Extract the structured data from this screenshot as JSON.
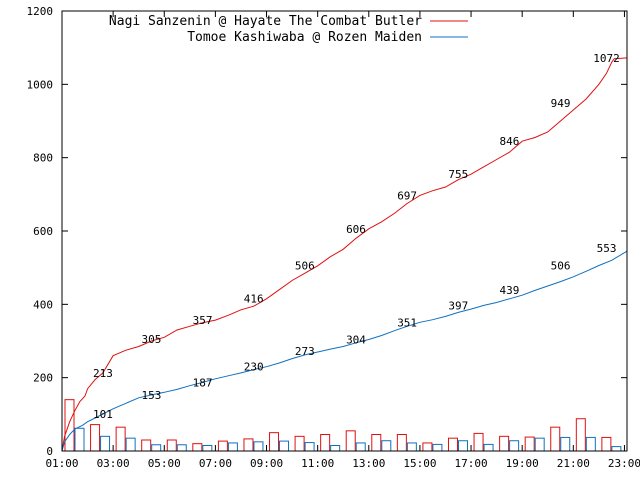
{
  "chart_data": {
    "type": "line",
    "xlabel": "",
    "ylabel": "",
    "xlim": [
      1,
      23.1
    ],
    "ylim": [
      0,
      1200
    ],
    "x_ticks": [
      {
        "x": 1,
        "label": "01:00"
      },
      {
        "x": 3,
        "label": "03:00"
      },
      {
        "x": 5,
        "label": "05:00"
      },
      {
        "x": 7,
        "label": "07:00"
      },
      {
        "x": 9,
        "label": "09:00"
      },
      {
        "x": 11,
        "label": "11:00"
      },
      {
        "x": 13,
        "label": "13:00"
      },
      {
        "x": 15,
        "label": "15:00"
      },
      {
        "x": 17,
        "label": "17:00"
      },
      {
        "x": 19,
        "label": "19:00"
      },
      {
        "x": 21,
        "label": "21:00"
      },
      {
        "x": 23,
        "label": "23:00"
      }
    ],
    "y_ticks": [
      0,
      200,
      400,
      600,
      800,
      1000,
      1200
    ],
    "grid": false,
    "legend_position": "top-left",
    "series": [
      {
        "name": "Nagi Sanzenin @ Hayate The Combat Butler",
        "color": "#e01010",
        "x": [
          1,
          1.1,
          1.3,
          1.5,
          1.7,
          1.9,
          2.0,
          2.3,
          2.6,
          3.0,
          3.5,
          4.0,
          4.5,
          5.0,
          5.5,
          6.0,
          6.5,
          7.0,
          7.5,
          8.0,
          8.5,
          9.0,
          9.5,
          10.0,
          10.5,
          11.0,
          11.5,
          12.0,
          12.5,
          13.0,
          13.5,
          14.0,
          14.5,
          15.0,
          15.5,
          16.0,
          16.5,
          17.0,
          17.5,
          18.0,
          18.5,
          19.0,
          19.5,
          20.0,
          20.5,
          21.0,
          21.5,
          22.0,
          22.3,
          22.5,
          22.6,
          23.1
        ],
        "y": [
          0,
          40,
          80,
          110,
          135,
          150,
          170,
          195,
          213,
          260,
          275,
          285,
          300,
          310,
          330,
          340,
          350,
          357,
          370,
          385,
          395,
          415,
          440,
          465,
          485,
          505,
          530,
          550,
          580,
          606,
          625,
          648,
          675,
          697,
          710,
          720,
          740,
          755,
          775,
          795,
          815,
          845,
          855,
          870,
          900,
          930,
          960,
          1000,
          1030,
          1060,
          1070,
          1072
        ]
      },
      {
        "name": "Tomoe Kashiwaba @ Rozen Maiden",
        "color": "#1070c0",
        "x": [
          1,
          1.1,
          1.3,
          1.5,
          1.8,
          2.0,
          2.3,
          2.6,
          3.0,
          3.5,
          4.0,
          4.5,
          5.0,
          5.5,
          6.0,
          6.5,
          7.0,
          7.5,
          8.0,
          8.5,
          9.0,
          9.5,
          10.0,
          10.5,
          11.0,
          11.5,
          12.0,
          12.5,
          13.0,
          13.5,
          14.0,
          14.5,
          15.0,
          15.5,
          16.0,
          16.5,
          17.0,
          17.5,
          18.0,
          18.5,
          19.0,
          19.5,
          20.0,
          20.5,
          21.0,
          21.5,
          22.0,
          22.5,
          23.1
        ],
        "y": [
          0,
          25,
          45,
          60,
          70,
          80,
          90,
          101,
          115,
          130,
          145,
          153,
          160,
          168,
          178,
          187,
          197,
          205,
          213,
          222,
          230,
          240,
          252,
          262,
          270,
          278,
          285,
          295,
          304,
          315,
          328,
          340,
          351,
          358,
          367,
          378,
          387,
          397,
          405,
          415,
          425,
          438,
          450,
          462,
          475,
          490,
          506,
          520,
          545
        ]
      }
    ],
    "bar_series": [
      {
        "name": "Nagi Sanzenin @ Hayate The Combat Butler",
        "color": "#e01010",
        "x": [
          1,
          2,
          3,
          4,
          5,
          6,
          7,
          8,
          9,
          10,
          11,
          12,
          13,
          14,
          15,
          16,
          17,
          18,
          19,
          20,
          21,
          22
        ],
        "values": [
          140,
          72,
          65,
          30,
          30,
          20,
          27,
          33,
          50,
          40,
          45,
          55,
          45,
          45,
          22,
          35,
          48,
          40,
          38,
          65,
          88,
          37
        ]
      },
      {
        "name": "Tomoe Kashiwaba @ Rozen Maiden",
        "color": "#1070c0",
        "x": [
          1,
          2,
          3,
          4,
          5,
          6,
          7,
          8,
          9,
          10,
          11,
          12,
          13,
          14,
          15,
          16,
          17,
          18,
          19,
          20,
          21,
          22
        ],
        "values": [
          62,
          40,
          35,
          17,
          17,
          15,
          22,
          25,
          27,
          23,
          15,
          22,
          28,
          22,
          18,
          28,
          18,
          28,
          35,
          37,
          37,
          12
        ]
      }
    ],
    "annotations": [
      {
        "series": 0,
        "x": 2.6,
        "y": 213,
        "label": "213"
      },
      {
        "series": 0,
        "x": 4.5,
        "y": 305,
        "label": "305"
      },
      {
        "series": 0,
        "x": 6.5,
        "y": 357,
        "label": "357"
      },
      {
        "series": 0,
        "x": 8.5,
        "y": 416,
        "label": "416"
      },
      {
        "series": 0,
        "x": 10.5,
        "y": 506,
        "label": "506"
      },
      {
        "series": 0,
        "x": 12.5,
        "y": 606,
        "label": "606"
      },
      {
        "series": 0,
        "x": 14.5,
        "y": 697,
        "label": "697"
      },
      {
        "series": 0,
        "x": 16.5,
        "y": 755,
        "label": "755"
      },
      {
        "series": 0,
        "x": 18.5,
        "y": 846,
        "label": "846"
      },
      {
        "series": 0,
        "x": 20.5,
        "y": 949,
        "label": "949"
      },
      {
        "series": 0,
        "x": 22.3,
        "y": 1072,
        "label": "1072"
      },
      {
        "series": 1,
        "x": 2.6,
        "y": 101,
        "label": "101"
      },
      {
        "series": 1,
        "x": 4.5,
        "y": 153,
        "label": "153"
      },
      {
        "series": 1,
        "x": 6.5,
        "y": 187,
        "label": "187"
      },
      {
        "series": 1,
        "x": 8.5,
        "y": 230,
        "label": "230"
      },
      {
        "series": 1,
        "x": 10.5,
        "y": 273,
        "label": "273"
      },
      {
        "series": 1,
        "x": 12.5,
        "y": 304,
        "label": "304"
      },
      {
        "series": 1,
        "x": 14.5,
        "y": 351,
        "label": "351"
      },
      {
        "series": 1,
        "x": 16.5,
        "y": 397,
        "label": "397"
      },
      {
        "series": 1,
        "x": 18.5,
        "y": 439,
        "label": "439"
      },
      {
        "series": 1,
        "x": 20.5,
        "y": 506,
        "label": "506"
      },
      {
        "series": 1,
        "x": 22.3,
        "y": 553,
        "label": "553"
      }
    ]
  }
}
